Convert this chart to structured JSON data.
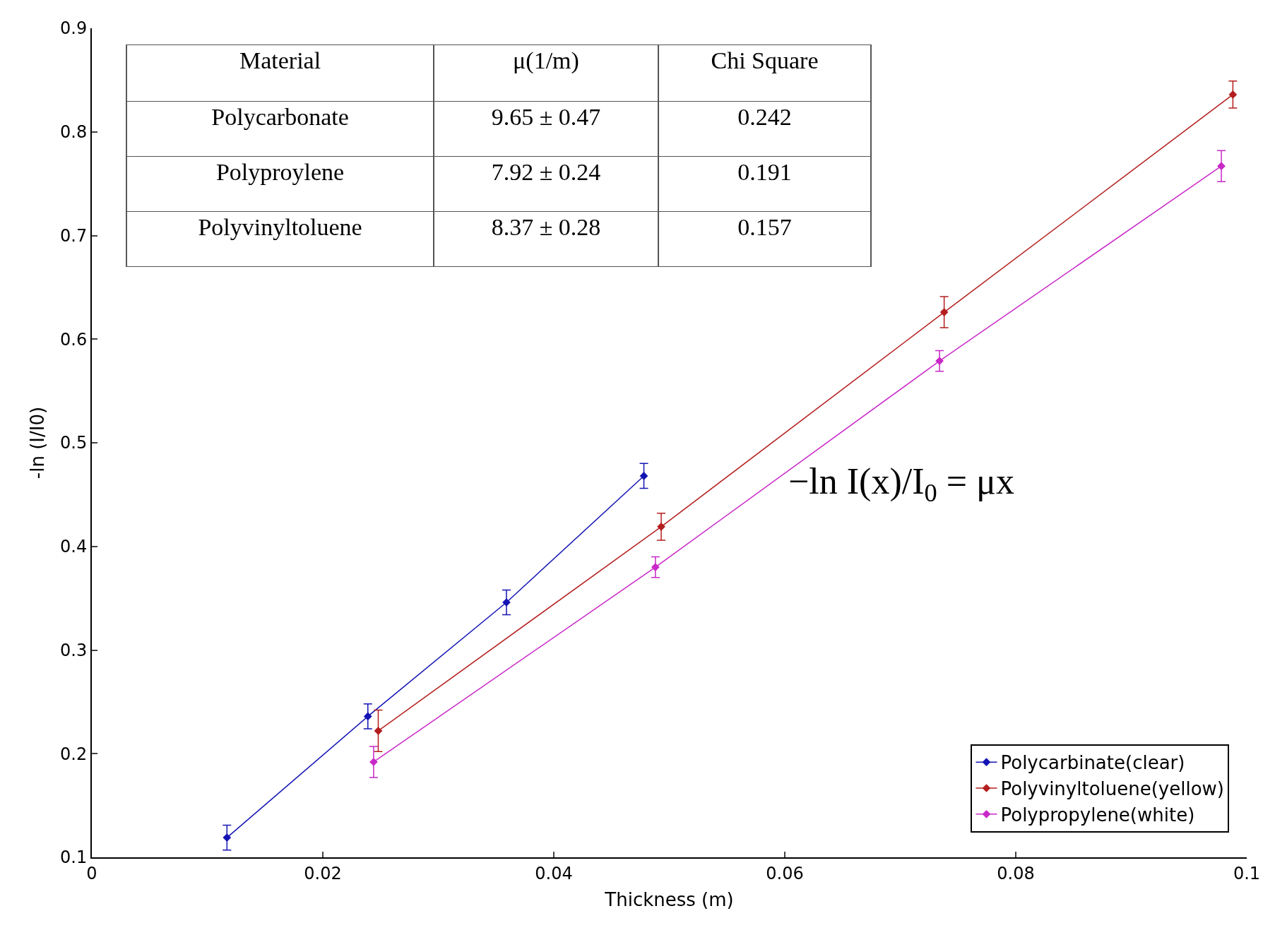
{
  "chart_data": {
    "type": "line",
    "xlabel": "Thickness (m)",
    "ylabel": "-ln (I/I0)",
    "xlim": [
      0,
      0.1
    ],
    "xticks": [
      0,
      0.02,
      0.04,
      0.06,
      0.08,
      0.1
    ],
    "ylim": [
      0.1,
      0.9
    ],
    "yticks": [
      0.1,
      0.2,
      0.3,
      0.4,
      0.5,
      0.6,
      0.7,
      0.8,
      0.9
    ],
    "legend": "bottom right",
    "marker": "diamond",
    "line_style": "solid",
    "series": [
      {
        "name": "Polycarbinate(clear)",
        "color": "#1414b4",
        "x": [
          0.0117,
          0.0239,
          0.0359,
          0.0478
        ],
        "values": [
          0.119,
          0.236,
          0.346,
          0.468
        ],
        "errors": [
          0.012,
          0.012,
          0.012,
          0.012
        ]
      },
      {
        "name": "Polyvinyltoluene(yellow)",
        "color": "#b41e1e",
        "x": [
          0.0248,
          0.0493,
          0.0738,
          0.0988
        ],
        "values": [
          0.222,
          0.419,
          0.626,
          0.836
        ],
        "errors": [
          0.02,
          0.013,
          0.015,
          0.013
        ]
      },
      {
        "name": "Polypropylene(white)",
        "color": "#c828c8",
        "x": [
          0.0244,
          0.0488,
          0.0734,
          0.0978
        ],
        "values": [
          0.192,
          0.38,
          0.579,
          0.767
        ],
        "errors": [
          0.015,
          0.01,
          0.01,
          0.015
        ]
      }
    ],
    "annotations": [
      "Material",
      "μ(1/m)",
      "Chi Square",
      "Polycarbonate",
      "9.65 ± 0.47",
      "0.242",
      "Polyproylene",
      "7.92 ± 0.24",
      "0.191",
      "Polyvinyltoluene",
      "8.37 ± 0.28",
      "0.157",
      "−ln I(x)/I$_{0}$ = μx"
    ]
  }
}
